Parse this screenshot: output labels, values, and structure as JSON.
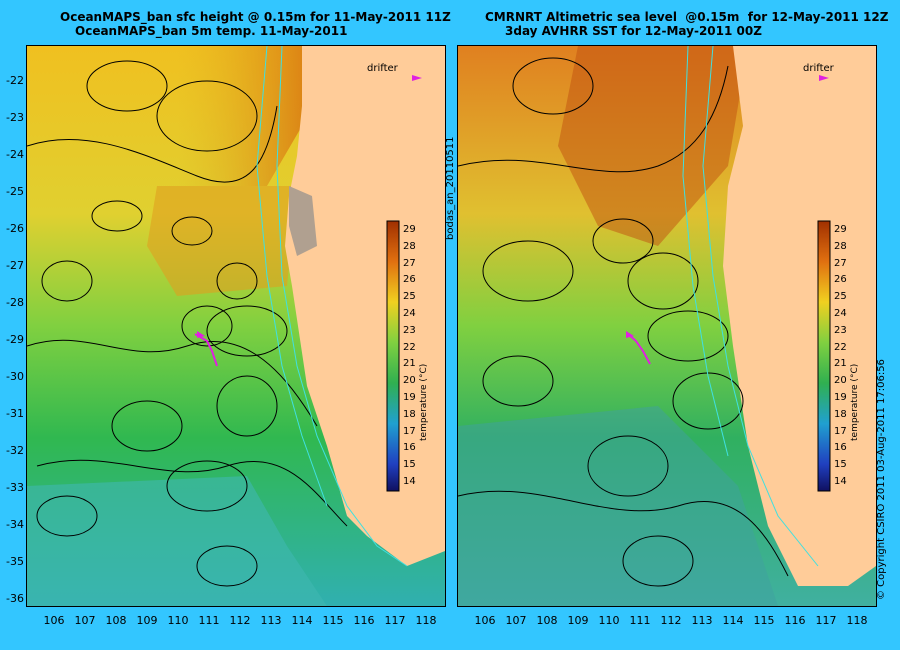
{
  "left_panel": {
    "title_line1": "OceanMAPS_ban sfc height @ 0.15m for 11-May-2011 11Z",
    "title_line2": "OceanMAPS_ban 5m temp. 11-May-2011",
    "drifter_label": "drifter",
    "colorbar_title": "temperature (°C)"
  },
  "right_panel": {
    "title_line1": "CMRNRT Altimetric sea level  @0.15m  for 12-May-2011 12Z",
    "title_line2": "3day AVHRR SST for 12-May-2011 00Z",
    "drifter_label": "drifter",
    "colorbar_title": "temperature (°C)"
  },
  "y_ticks": [
    "-22",
    "-23",
    "-24",
    "-25",
    "-26",
    "-27",
    "-28",
    "-29",
    "-30",
    "-31",
    "-32",
    "-33",
    "-34",
    "-35",
    "-36"
  ],
  "x_ticks": [
    "106",
    "107",
    "108",
    "109",
    "110",
    "111",
    "112",
    "113",
    "114",
    "115",
    "116",
    "117",
    "118"
  ],
  "colorbar_ticks": [
    "29",
    "28",
    "27",
    "26",
    "25",
    "24",
    "23",
    "22",
    "21",
    "20",
    "19",
    "18",
    "17",
    "16",
    "15",
    "14"
  ],
  "middle_vertical_label": "bodas_an_20110511",
  "right_vertical_label": "© Copyright CSIRO 2011   03-Aug-2011 17:06:56",
  "colors": {
    "background": "#33c6ff",
    "land": "#ffcc99",
    "contour": "#000000",
    "bathymetry": "#40e0e0",
    "drifter": "#e020e0"
  }
}
